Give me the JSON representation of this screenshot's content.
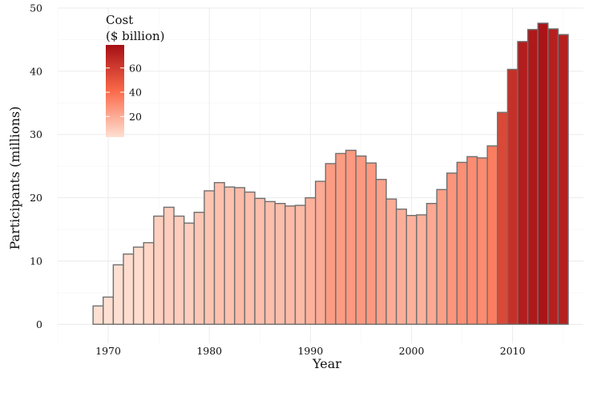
{
  "chart_data": {
    "type": "bar",
    "title": "",
    "xlabel": "Year",
    "ylabel": "Participants (millions)",
    "xlim": [
      1965,
      2017
    ],
    "ylim": [
      -3,
      50
    ],
    "x_ticks": [
      1970,
      1980,
      1990,
      2000,
      2010
    ],
    "y_ticks": [
      0,
      10,
      20,
      30,
      40,
      50
    ],
    "grid": true,
    "legend": {
      "title_line1": "Cost",
      "title_line2": "($ billion)",
      "placement": "top-left",
      "ticks": [
        20,
        40,
        60
      ],
      "range": [
        3,
        79
      ],
      "color_low": "#fee0d2",
      "color_mid": "#fb6a4a",
      "color_high": "#a50f15"
    },
    "series": [
      {
        "x": [
          1969,
          1970,
          1971,
          1972,
          1973,
          1974,
          1975,
          1976,
          1977,
          1978,
          1979,
          1980,
          1981,
          1982,
          1983,
          1984,
          1985,
          1986,
          1987,
          1988,
          1989,
          1990,
          1991,
          1992,
          1993,
          1994,
          1995,
          1996,
          1997,
          1998,
          1999,
          2000,
          2001,
          2002,
          2003,
          2004,
          2005,
          2006,
          2007,
          2008,
          2009,
          2010,
          2011,
          2012,
          2013,
          2014,
          2015
        ],
        "values": [
          2.9,
          4.3,
          9.4,
          11.1,
          12.2,
          12.9,
          17.1,
          18.5,
          17.1,
          16.0,
          17.7,
          21.1,
          22.4,
          21.7,
          21.6,
          20.9,
          19.9,
          19.4,
          19.1,
          18.7,
          18.8,
          20.0,
          22.6,
          25.4,
          27.0,
          27.5,
          26.6,
          25.5,
          22.9,
          19.8,
          18.2,
          17.2,
          17.3,
          19.1,
          21.3,
          23.9,
          25.6,
          26.5,
          26.3,
          28.2,
          33.5,
          40.3,
          44.7,
          46.6,
          47.6,
          46.7,
          45.8
        ],
        "cost": [
          3,
          3,
          3,
          4,
          4,
          6,
          8,
          9,
          9,
          9,
          11,
          12,
          13,
          13,
          15,
          14,
          14,
          14,
          14,
          15,
          15,
          18,
          20,
          25,
          25,
          26,
          26,
          26,
          23,
          20,
          19,
          18,
          18,
          21,
          24,
          27,
          29,
          30,
          30,
          35,
          55,
          65,
          73,
          75,
          77,
          72,
          72
        ]
      }
    ]
  }
}
